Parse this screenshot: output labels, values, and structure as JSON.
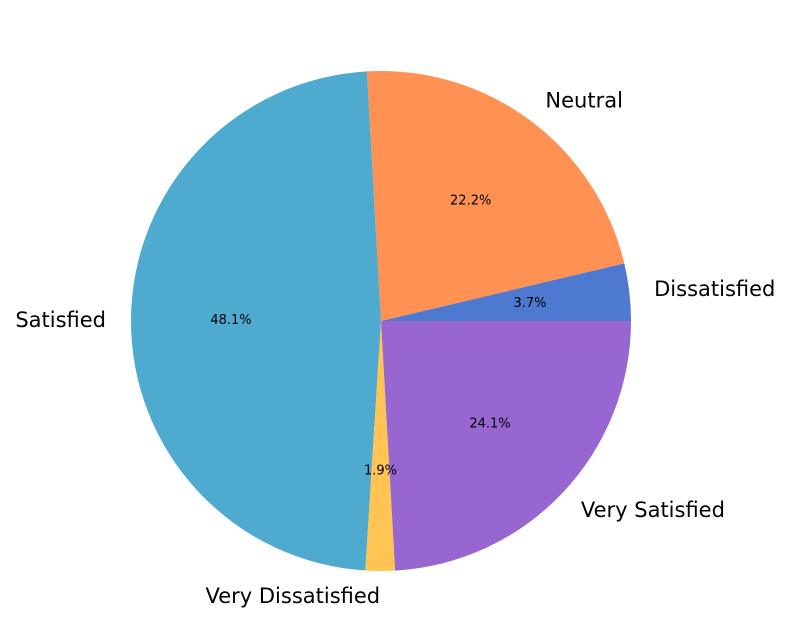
{
  "chart_data": {
    "type": "pie",
    "title": "",
    "start_angle_deg": 0,
    "direction": "counterclockwise",
    "slices": [
      {
        "label": "Dissatisfied",
        "value": 3.7,
        "pct_label": "3.7%",
        "color": "#4d79d0"
      },
      {
        "label": "Neutral",
        "value": 22.2,
        "pct_label": "22.2%",
        "color": "#ff9152"
      },
      {
        "label": "Satisfied",
        "value": 48.1,
        "pct_label": "48.1%",
        "color": "#4eaace"
      },
      {
        "label": "Very Dissatisfied",
        "value": 1.9,
        "pct_label": "1.9%",
        "color": "#ffc452"
      },
      {
        "label": "Very Satisfied",
        "value": 24.1,
        "pct_label": "24.1%",
        "color": "#9766d0"
      }
    ]
  }
}
